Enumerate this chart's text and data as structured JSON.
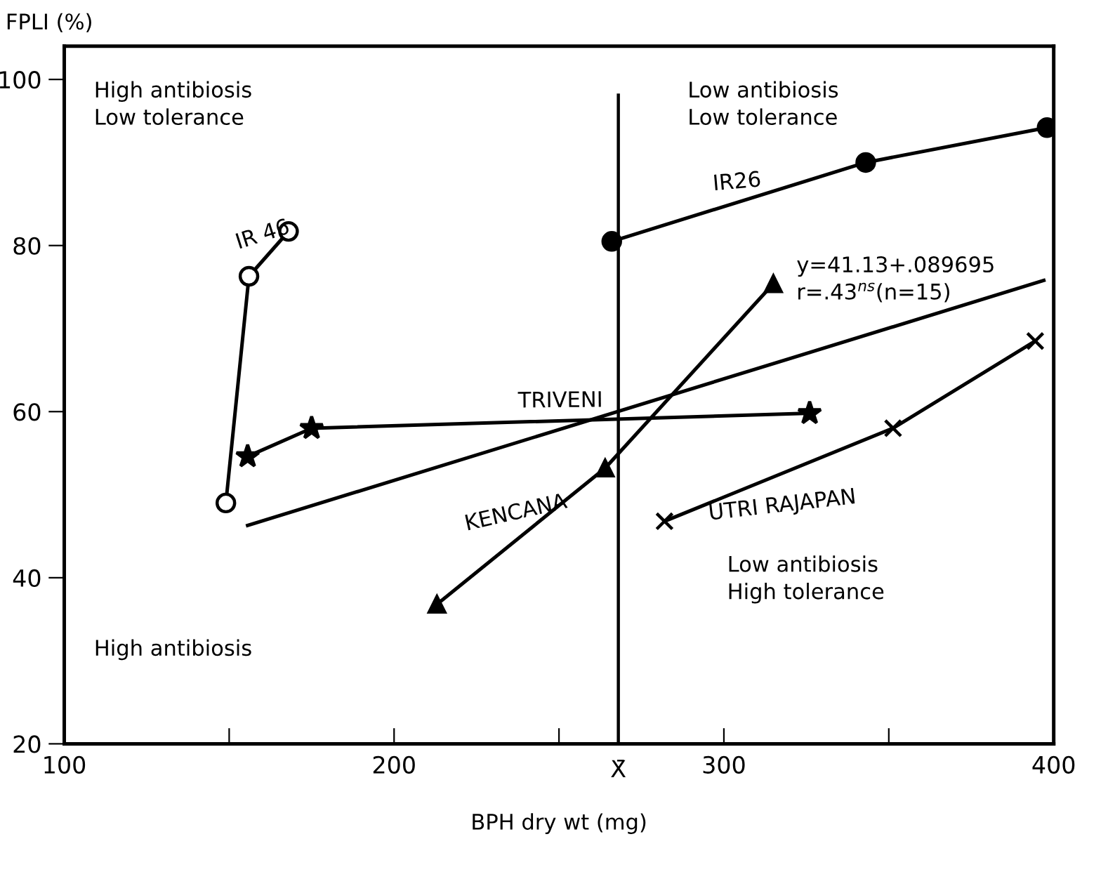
{
  "chart_data": {
    "type": "line",
    "xlabel": "BPH dry wt (mg)",
    "ylabel": "FPLI (%)",
    "xlim": [
      100,
      400
    ],
    "ylim": [
      20,
      104
    ],
    "xticks": [
      100,
      {
        "value": 150,
        "label": null
      },
      200,
      {
        "value": 250,
        "label": null
      },
      300,
      {
        "value": 350,
        "label": null
      },
      400
    ],
    "yticks": [
      20,
      40,
      60,
      80,
      100
    ],
    "grid": false,
    "legend": false,
    "line_style": "solid",
    "series": [
      {
        "name": "IR 46",
        "color": "#000000",
        "marker": "circle",
        "x": [
          149,
          156,
          168
        ],
        "values": [
          49,
          76.3,
          81.7
        ]
      },
      {
        "name": "IR26",
        "color": "#000000",
        "marker": "circle",
        "x": [
          266,
          343,
          398
        ],
        "values": [
          80.5,
          90,
          94.2
        ]
      },
      {
        "name": "TRIVENI",
        "color": "#000000",
        "marker": "star",
        "x": [
          155.6,
          175,
          326
        ],
        "values": [
          54.6,
          58,
          59.8
        ]
      },
      {
        "name": "KENCANA",
        "color": "#000000",
        "marker": "triangle",
        "x": [
          213,
          264,
          315
        ],
        "values": [
          36.8,
          53.2,
          75.4
        ]
      },
      {
        "name": "UTRI RAJAPAN",
        "color": "#000000",
        "marker": "cross",
        "x": [
          282,
          351.3,
          394.4
        ],
        "values": [
          46.8,
          58,
          68.5
        ]
      },
      {
        "color": "#000000",
        "marker": "none",
        "x": [
          155.6,
          397
        ],
        "values": [
          46.3,
          75.8
        ]
      }
    ],
    "ref_lines": [
      {
        "axis": "x",
        "value": 268,
        "label": "X̄",
        "color": "#000000"
      }
    ],
    "annotations": [
      "High antibiosis\nLow tolerance",
      "Low antibiosis\nLow tolerance",
      "High antibiosis",
      "Low antibiosis\nHigh tolerance",
      "y=41.13+.089695\nr=.43$^{ns}$(n=15)"
    ]
  }
}
